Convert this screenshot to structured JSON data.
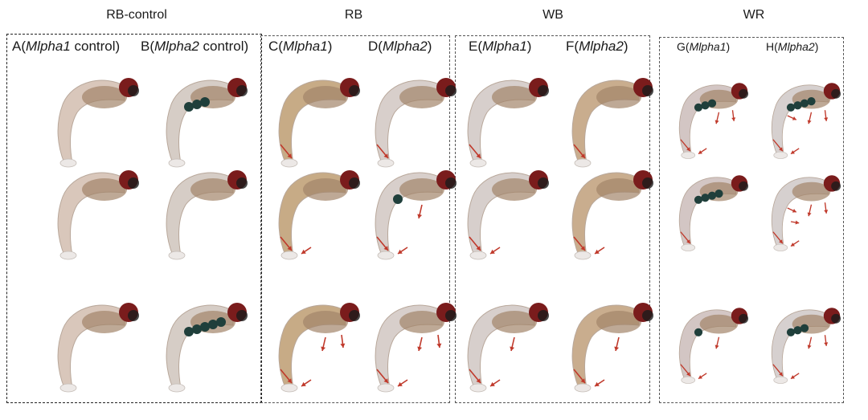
{
  "groups": [
    {
      "title": "RB-control"
    },
    {
      "title": "RB"
    },
    {
      "title": "WB"
    },
    {
      "title": "WR"
    }
  ],
  "columns": [
    {
      "letter": "A",
      "gene": "Mlpha1",
      "suffix": " control"
    },
    {
      "letter": "B",
      "gene": "Mlpha2",
      "suffix": " control"
    },
    {
      "letter": "C",
      "gene": "Mlpha1",
      "suffix": ""
    },
    {
      "letter": "D",
      "gene": "Mlpha2",
      "suffix": ""
    },
    {
      "letter": "E",
      "gene": "Mlpha1",
      "suffix": ""
    },
    {
      "letter": "F",
      "gene": "Mlpha2",
      "suffix": ""
    },
    {
      "letter": "G",
      "gene": "Mlpha1",
      "suffix": ""
    },
    {
      "letter": "H",
      "gene": "Mlpha2",
      "suffix": ""
    }
  ],
  "colors": {
    "frame": "#555555",
    "arrow": "#c0392b",
    "eye": "#7a1c1c",
    "body_pale": "#e4d6cc",
    "body_brown": "#a3846a",
    "stain": "#1f3f3b"
  }
}
